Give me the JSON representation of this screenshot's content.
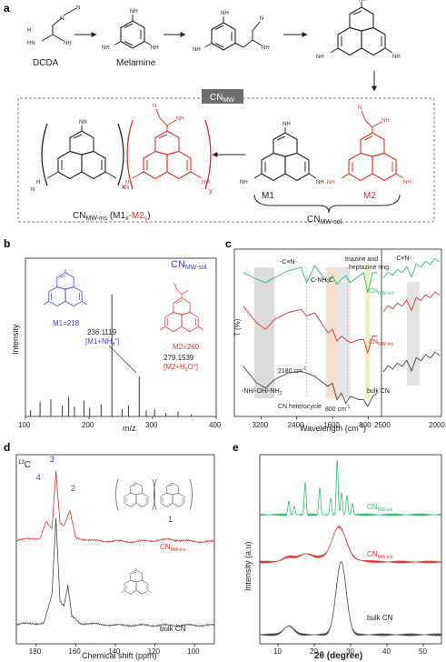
{
  "panel_a": {
    "letter": "a",
    "dcda_label": "DCDA",
    "melamine_label": "Melamine",
    "box_label": "CN",
    "box_sub": "MW",
    "m1_label": "M1",
    "m2_label": "M2",
    "sol_label": "CN",
    "sol_sub": "MW-sol",
    "ins_label": "CN",
    "ins_sub": "MW-ins",
    "ins_formula_open": " (M1",
    "ins_x": "x",
    "ins_dash": "-",
    "ins_m2": "M2",
    "ins_y": "y",
    "ins_formula_close": ")",
    "chain_x": "x",
    "chain_y": "y",
    "atoms": {
      "n": "N",
      "nh2": "NH",
      "nh": "NH",
      "h": "H",
      "two": "2",
      "hn": "HN"
    },
    "colors": {
      "black": "#222222",
      "red": "#d9322d",
      "box": "#7a7a7a"
    }
  },
  "panel_b": {
    "letter": "b",
    "title": "CN",
    "title_sub": "MW-sol",
    "ylabel": "Intensity",
    "xlabel": "m/z",
    "m1_text": "M1=218",
    "m2_text": "M2=260",
    "peak1_value": "236.1119",
    "peak1_ion_open": "[M1+NH",
    "peak1_ion_sub": "4",
    "peak1_ion_sup": "+",
    "peak1_ion_close": "]",
    "peak2_value": "279.1539",
    "peak2_ion_open": "[M2+H",
    "peak2_ion_sub": "3",
    "peak2_ion_mid": "O",
    "peak2_ion_sup": "+",
    "peak2_ion_close": "]",
    "colors": {
      "m1": "#3a3ad6",
      "m2": "#d9322d"
    }
  },
  "panel_c": {
    "letter": "c",
    "ylabel": "T (%)",
    "xlabel_pre": "Wavelength (cm",
    "xlabel_sup": "-1",
    "xlabel_post": ")",
    "ann_cn_triple": "-C≡N-",
    "ann_cnhc": "C-NH-C",
    "ann_ring": "triazine and",
    "ann_ring2": "heptazine ring",
    "ann_2180": "2180 cm",
    "ann_nh": "-NH/-OH/-NH",
    "ann_nh_sub": "2",
    "ann_hetero": "CN heterocycle",
    "ann_800": "800 cm",
    "ann_sup": "-1",
    "ann_right": "-C≡N-",
    "label_sol": "CN",
    "label_sol_sub": "MW-sol",
    "label_ins": "CN",
    "label_ins_sub": "MW-ins",
    "label_bulk": "bulk CN",
    "colors": {
      "sol": "#2fbf6c",
      "ins": "#d9322d",
      "bulk": "#444444"
    }
  },
  "panel_d": {
    "letter": "d",
    "nucleus_sup": "13",
    "nucleus": "C",
    "xlabel": "Chemical shift (ppm)",
    "peak_labels": [
      "1",
      "2",
      "3",
      "4"
    ],
    "label_ins": "CN",
    "label_ins_sub": "MW-ins",
    "label_bulk": "bulk CN",
    "colors": {
      "ins": "#d9322d",
      "bulk": "#444444",
      "peak_label": "#3a3ad6"
    }
  },
  "panel_e": {
    "letter": "e",
    "ylabel": "Intensity (a.u)",
    "xlabel": "2θ (degree)",
    "label_sol": "CN",
    "label_sol_sub": "MW-sol",
    "label_ins": "CN",
    "label_ins_sub": "MW-ins",
    "label_bulk": "bulk CN",
    "colors": {
      "sol": "#2fbf6c",
      "ins": "#d9322d",
      "bulk": "#444444"
    }
  },
  "chart_data": [
    {
      "type": "bar",
      "panel": "b",
      "title": "CN MW-sol",
      "xlabel": "m/z",
      "ylabel": "Intensity",
      "xlim": [
        100,
        400
      ],
      "x_ticks": [
        100,
        200,
        300,
        400
      ],
      "x": [
        108,
        123,
        140,
        158,
        168,
        177,
        192,
        201,
        219,
        236,
        252,
        262,
        279,
        290,
        303,
        321,
        340,
        361
      ],
      "values": [
        0.05,
        0.12,
        0.14,
        0.09,
        0.16,
        0.08,
        0.13,
        0.07,
        0.1,
        1.0,
        0.06,
        0.09,
        0.33,
        0.05,
        0.06,
        0.03,
        0.04,
        0.02
      ]
    },
    {
      "type": "line",
      "panel": "c",
      "xlabel": "Wavelength (cm-1)",
      "ylabel": "T (%)",
      "x_ticks_left": [
        3200,
        2400,
        1600,
        800
      ],
      "x_ticks_right": [
        2500,
        2000
      ],
      "series": [
        {
          "name": "CN MW-sol",
          "x": [
            3600,
            3300,
            3100,
            2900,
            2600,
            2300,
            2180,
            2000,
            1700,
            1600,
            1500,
            1400,
            1300,
            1200,
            1000,
            900,
            810,
            700,
            600
          ],
          "y": [
            0.86,
            0.82,
            0.8,
            0.83,
            0.87,
            0.89,
            0.8,
            0.9,
            0.8,
            0.84,
            0.79,
            0.82,
            0.84,
            0.8,
            0.84,
            0.86,
            0.74,
            0.86,
            0.86
          ]
        },
        {
          "name": "CN MW-ins",
          "x": [
            3600,
            3300,
            3100,
            2900,
            2600,
            2300,
            2180,
            2000,
            1700,
            1600,
            1500,
            1400,
            1300,
            1200,
            1000,
            900,
            810,
            700,
            600
          ],
          "y": [
            0.66,
            0.56,
            0.52,
            0.58,
            0.62,
            0.64,
            0.6,
            0.62,
            0.5,
            0.52,
            0.45,
            0.48,
            0.46,
            0.44,
            0.46,
            0.46,
            0.38,
            0.48,
            0.48
          ]
        },
        {
          "name": "bulk CN",
          "x": [
            3600,
            3300,
            3100,
            2900,
            2600,
            2300,
            2180,
            2000,
            1700,
            1600,
            1500,
            1400,
            1300,
            1200,
            1000,
            900,
            810,
            700,
            600
          ],
          "y": [
            0.3,
            0.2,
            0.17,
            0.22,
            0.26,
            0.27,
            0.26,
            0.24,
            0.18,
            0.2,
            0.1,
            0.14,
            0.08,
            0.12,
            0.1,
            0.1,
            0.06,
            0.12,
            0.14
          ]
        }
      ]
    },
    {
      "type": "line",
      "panel": "d",
      "xlabel": "Chemical shift (ppm)",
      "xlim": [
        190,
        90
      ],
      "x_ticks": [
        180,
        160,
        140,
        120,
        100
      ],
      "peaks_ppm": {
        "1": 112,
        "2": 163,
        "3": 170,
        "4": 175
      },
      "series": [
        {
          "name": "CN MW-ins",
          "x": [
            190,
            178,
            175,
            172,
            170,
            168,
            166,
            163,
            160,
            150,
            130,
            112,
            100,
            90
          ],
          "y": [
            0.05,
            0.08,
            0.3,
            0.2,
            1.0,
            0.3,
            0.25,
            0.45,
            0.08,
            0.04,
            0.03,
            0.06,
            0.03,
            0.03
          ]
        },
        {
          "name": "bulk CN",
          "x": [
            190,
            176,
            172,
            170,
            168,
            166,
            164,
            162,
            158,
            140,
            120,
            100,
            90
          ],
          "y": [
            0.03,
            0.04,
            0.3,
            1.0,
            0.25,
            0.2,
            0.38,
            0.1,
            0.04,
            0.02,
            0.02,
            0.02,
            0.02
          ]
        }
      ]
    },
    {
      "type": "line",
      "panel": "e",
      "xlabel": "2θ (degree)",
      "ylabel": "Intensity (a.u)",
      "xlim": [
        5,
        55
      ],
      "x_ticks": [
        10,
        20,
        30,
        40,
        50
      ],
      "series": [
        {
          "name": "CN MW-sol",
          "peaks_2theta": [
            13.0,
            14.5,
            17.5,
            21.5,
            24.5,
            26.3,
            27.5,
            29.0,
            30.5
          ],
          "heights": [
            0.25,
            0.15,
            0.6,
            0.5,
            0.3,
            1.0,
            0.4,
            0.35,
            0.2
          ]
        },
        {
          "name": "CN MW-ins",
          "peaks_2theta": [
            13.0,
            17.5,
            26.3,
            28.0
          ],
          "heights": [
            0.12,
            0.15,
            0.6,
            0.35
          ]
        },
        {
          "name": "bulk CN",
          "peaks_2theta": [
            13.0,
            27.4
          ],
          "heights": [
            0.12,
            1.0
          ]
        }
      ]
    }
  ]
}
